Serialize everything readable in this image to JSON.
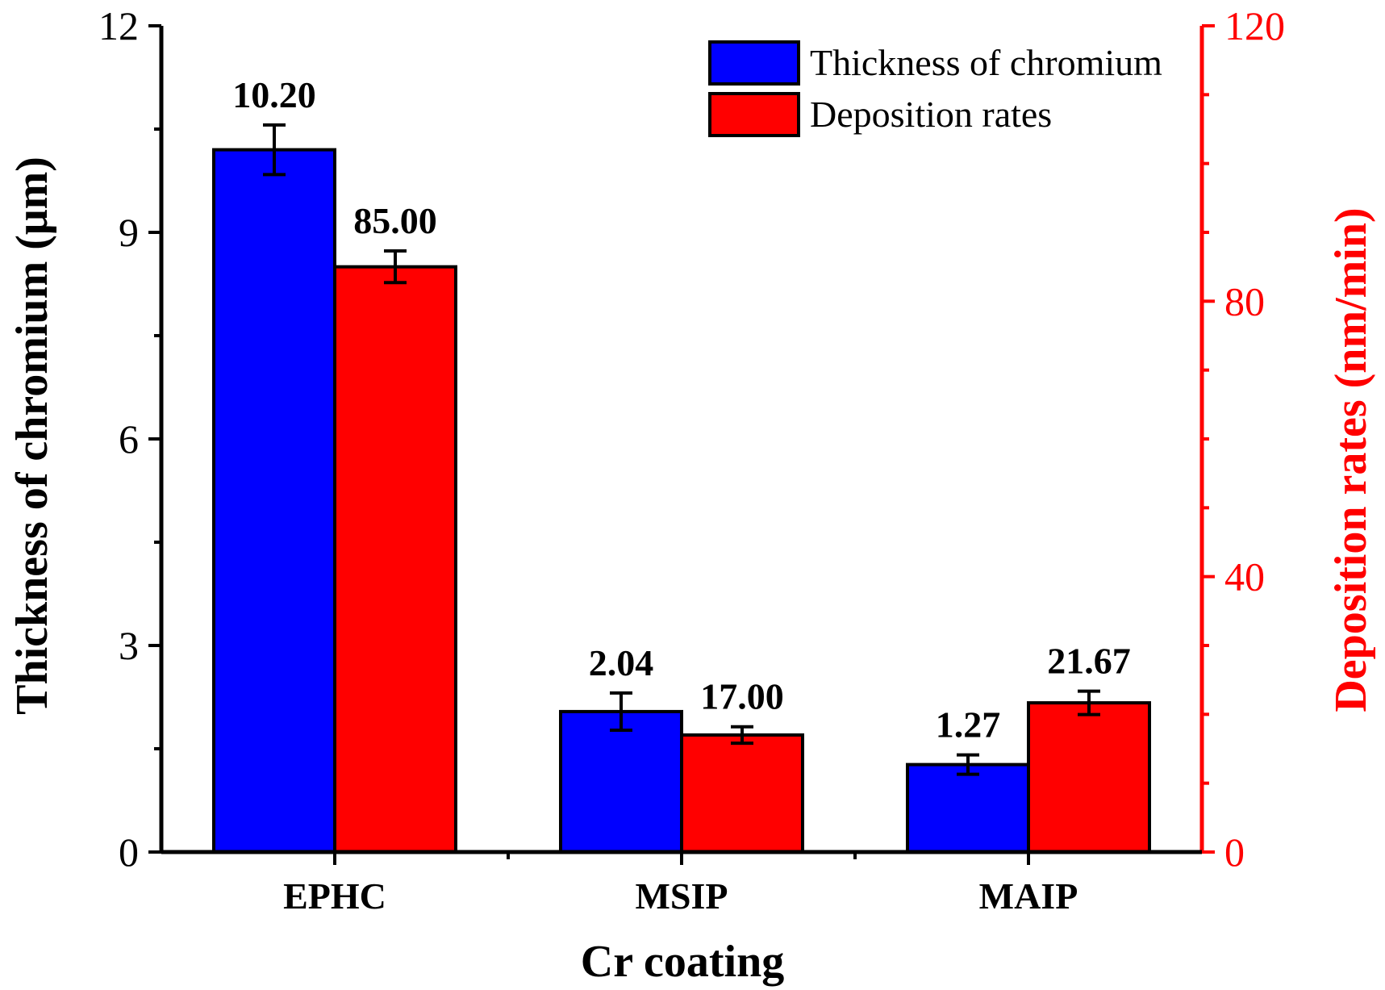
{
  "chart_data": {
    "type": "bar",
    "categories": [
      "EPHC",
      "MSIP",
      "MAIP"
    ],
    "xlabel": "Cr coating",
    "ylabel_left": "Thickness of chromium (μm)",
    "ylabel_right": "Deposition rates (nm/min)",
    "ylim_left": [
      0,
      12
    ],
    "yticks_left": [
      0,
      3,
      6,
      9,
      12
    ],
    "ylim_right": [
      0,
      120
    ],
    "yticks_right": [
      0,
      40,
      80,
      120
    ],
    "right_axis_color": "#ff0000",
    "legend_position": "top-right",
    "series": [
      {
        "name": "Thickness of chromium",
        "axis": "left",
        "color": "#0000ff",
        "values": [
          10.2,
          2.04,
          1.27
        ],
        "errors": [
          0.36,
          0.27,
          0.14
        ],
        "labels": [
          "10.20",
          "2.04",
          "1.27"
        ]
      },
      {
        "name": "Deposition rates",
        "axis": "right",
        "color": "#ff0000",
        "values": [
          85.0,
          17.0,
          21.67
        ],
        "errors": [
          2.3,
          1.2,
          1.7
        ],
        "labels": [
          "85.00",
          "17.00",
          "21.67"
        ]
      }
    ]
  }
}
